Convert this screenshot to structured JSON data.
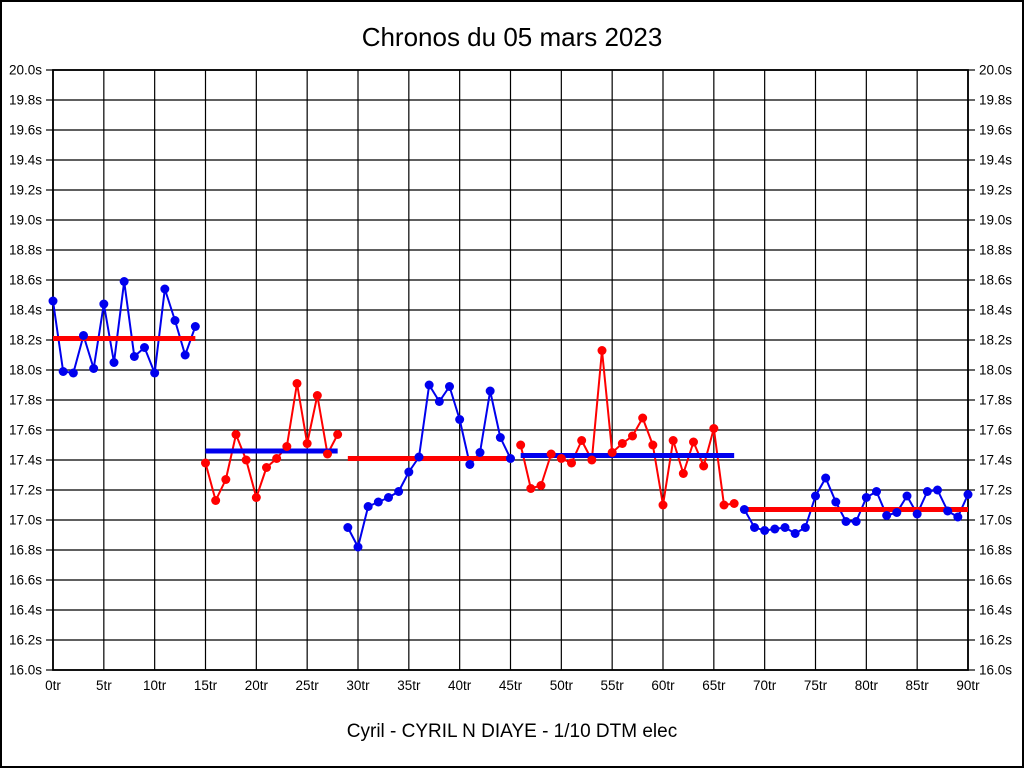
{
  "title": "Chronos du 05 mars 2023",
  "footer": "Cyril - CYRIL N DIAYE - 1/10 DTM elec",
  "colors": {
    "blue": "#0000ee",
    "red": "#ff0000",
    "grid": "#000000",
    "background": "#ffffff"
  },
  "chart_data": {
    "type": "line",
    "title": "Chronos du 05 mars 2023",
    "subtitle": "Cyril - CYRIL N DIAYE - 1/10 DTM elec",
    "x_unit": "tr",
    "y_unit": "s",
    "xlim": [
      0,
      90
    ],
    "ylim": [
      16.0,
      20.0
    ],
    "xtick_step": 5,
    "ytick_step": 0.2,
    "grid": true,
    "legend": "none",
    "y_ticks": [
      "20.0s",
      "19.8s",
      "19.6s",
      "19.4s",
      "19.2s",
      "19.0s",
      "18.8s",
      "18.6s",
      "18.4s",
      "18.2s",
      "18.0s",
      "17.8s",
      "17.6s",
      "17.4s",
      "17.2s",
      "17.0s",
      "16.8s",
      "16.6s",
      "16.4s",
      "16.2s",
      "16.0s"
    ],
    "x_ticks": [
      "0tr",
      "5tr",
      "10tr",
      "15tr",
      "20tr",
      "25tr",
      "30tr",
      "35tr",
      "40tr",
      "45tr",
      "50tr",
      "55tr",
      "60tr",
      "65tr",
      "70tr",
      "75tr",
      "80tr",
      "85tr",
      "90tr"
    ],
    "series": [
      {
        "name": "run-1",
        "color": "blue",
        "avg_color": "red",
        "start_lap": 0,
        "average": 18.21,
        "values": [
          18.46,
          17.99,
          17.98,
          18.23,
          18.01,
          18.44,
          18.05,
          18.59,
          18.09,
          18.15,
          17.98,
          18.54,
          18.33,
          18.1,
          18.29
        ]
      },
      {
        "name": "run-2",
        "color": "red",
        "avg_color": "blue",
        "start_lap": 15,
        "average": 17.46,
        "values": [
          17.38,
          17.13,
          17.27,
          17.57,
          17.4,
          17.15,
          17.35,
          17.41,
          17.49,
          17.91,
          17.51,
          17.83,
          17.44,
          17.57
        ]
      },
      {
        "name": "run-3",
        "color": "blue",
        "avg_color": "red",
        "start_lap": 29,
        "average": 17.41,
        "values": [
          16.95,
          16.82,
          17.09,
          17.12,
          17.15,
          17.19,
          17.32,
          17.42,
          17.9,
          17.79,
          17.89,
          17.67,
          17.37,
          17.45,
          17.86,
          17.55,
          17.41
        ]
      },
      {
        "name": "run-4",
        "color": "red",
        "avg_color": "blue",
        "start_lap": 46,
        "average": 17.43,
        "values": [
          17.5,
          17.21,
          17.23,
          17.44,
          17.41,
          17.38,
          17.53,
          17.4,
          18.13,
          17.45,
          17.51,
          17.56,
          17.68,
          17.5,
          17.1,
          17.53,
          17.31,
          17.52,
          17.36,
          17.61,
          17.1,
          17.11
        ]
      },
      {
        "name": "run-5",
        "color": "blue",
        "avg_color": "red",
        "start_lap": 68,
        "average": 17.07,
        "values": [
          17.07,
          16.95,
          16.93,
          16.94,
          16.95,
          16.91,
          16.95,
          17.16,
          17.28,
          17.12,
          16.99,
          16.99,
          17.15,
          17.19,
          17.03,
          17.05,
          17.16,
          17.04,
          17.19,
          17.2,
          17.06,
          17.02,
          17.17
        ]
      }
    ]
  }
}
